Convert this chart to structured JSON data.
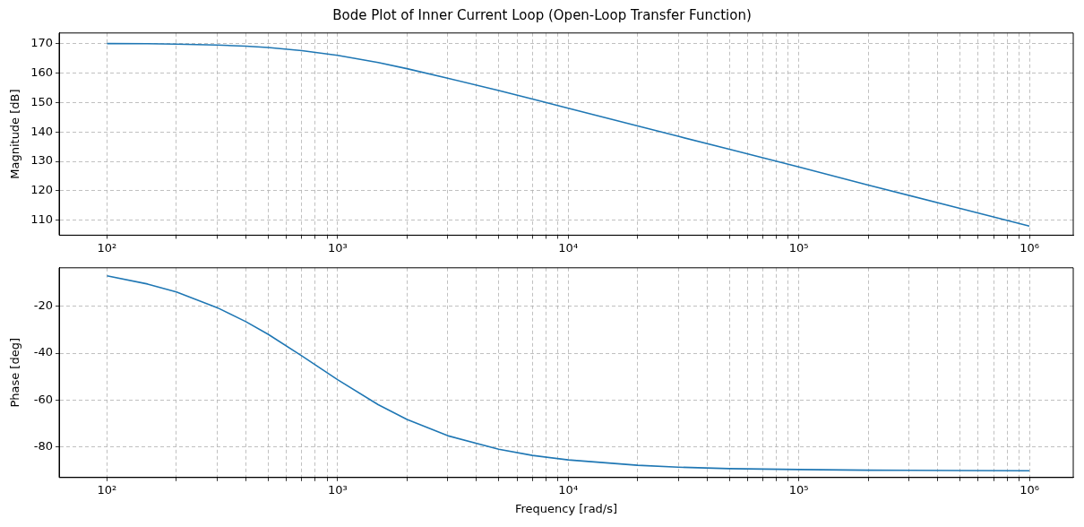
{
  "chart_data": [
    {
      "type": "line",
      "title": "Bode Plot of Inner Current Loop (Open-Loop Transfer Function)",
      "ylabel": "Magnitude [dB]",
      "x": [
        100,
        150,
        200,
        300,
        400,
        500,
        700,
        1000,
        1500,
        2000,
        3000,
        5000,
        7000,
        10000,
        20000,
        30000,
        50000,
        100000,
        200000,
        500000,
        1000000
      ],
      "series": [
        {
          "color": "#1f77b4",
          "values": [
            169.9,
            169.85,
            169.74,
            169.43,
            169.03,
            168.57,
            167.53,
            165.9,
            163.5,
            161.4,
            158.2,
            154.0,
            151.1,
            148.0,
            142.0,
            138.5,
            134.1,
            128.1,
            122.0,
            114.1,
            108.1
          ]
        }
      ],
      "xlim": [
        62,
        1550000
      ],
      "ylim": [
        105,
        173.5
      ],
      "yticks": [
        110,
        120,
        130,
        140,
        150,
        160,
        170
      ],
      "log": "x",
      "grid": true,
      "marker": "none",
      "line_style": "solid",
      "xticks": [
        {
          "value": 100,
          "label": "10²"
        },
        {
          "value": 200,
          "label": null
        },
        {
          "value": 300,
          "label": null
        },
        {
          "value": 400,
          "label": null
        },
        {
          "value": 500,
          "label": null
        },
        {
          "value": 600,
          "label": null
        },
        {
          "value": 700,
          "label": null
        },
        {
          "value": 800,
          "label": null
        },
        {
          "value": 900,
          "label": null
        },
        {
          "value": 1000,
          "label": "10³"
        },
        {
          "value": 2000,
          "label": null
        },
        {
          "value": 3000,
          "label": null
        },
        {
          "value": 4000,
          "label": null
        },
        {
          "value": 5000,
          "label": null
        },
        {
          "value": 6000,
          "label": null
        },
        {
          "value": 7000,
          "label": null
        },
        {
          "value": 8000,
          "label": null
        },
        {
          "value": 9000,
          "label": null
        },
        {
          "value": 10000,
          "label": "10⁴"
        },
        {
          "value": 20000,
          "label": null
        },
        {
          "value": 30000,
          "label": null
        },
        {
          "value": 40000,
          "label": null
        },
        {
          "value": 50000,
          "label": null
        },
        {
          "value": 60000,
          "label": null
        },
        {
          "value": 70000,
          "label": null
        },
        {
          "value": 80000,
          "label": null
        },
        {
          "value": 90000,
          "label": null
        },
        {
          "value": 100000,
          "label": "10⁵"
        },
        {
          "value": 200000,
          "label": null
        },
        {
          "value": 300000,
          "label": null
        },
        {
          "value": 400000,
          "label": null
        },
        {
          "value": 500000,
          "label": null
        },
        {
          "value": 600000,
          "label": null
        },
        {
          "value": 700000,
          "label": null
        },
        {
          "value": 800000,
          "label": null
        },
        {
          "value": 900000,
          "label": null
        },
        {
          "value": 1000000,
          "label": "10⁶"
        }
      ]
    },
    {
      "type": "line",
      "xlabel": "Frequency [rad/s]",
      "ylabel": "Phase [deg]",
      "x": [
        100,
        150,
        200,
        300,
        400,
        500,
        700,
        1000,
        1500,
        2000,
        3000,
        5000,
        7000,
        10000,
        20000,
        30000,
        50000,
        100000,
        200000,
        500000,
        1000000
      ],
      "series": [
        {
          "color": "#1f77b4",
          "values": [
            -7.1,
            -10.6,
            -14.0,
            -20.6,
            -26.6,
            -32.0,
            -41.2,
            -51.3,
            -61.9,
            -68.2,
            -75.1,
            -80.9,
            -83.5,
            -85.4,
            -87.7,
            -88.5,
            -89.1,
            -89.5,
            -89.8,
            -89.9,
            -90.0
          ]
        }
      ],
      "xlim": [
        62,
        1550000
      ],
      "ylim": [
        -92.9,
        -3.7
      ],
      "yticks": [
        -80,
        -60,
        -40,
        -20
      ],
      "log": "x",
      "grid": true,
      "marker": "none",
      "line_style": "solid",
      "xticks": [
        {
          "value": 100,
          "label": "10²"
        },
        {
          "value": 200,
          "label": null
        },
        {
          "value": 300,
          "label": null
        },
        {
          "value": 400,
          "label": null
        },
        {
          "value": 500,
          "label": null
        },
        {
          "value": 600,
          "label": null
        },
        {
          "value": 700,
          "label": null
        },
        {
          "value": 800,
          "label": null
        },
        {
          "value": 900,
          "label": null
        },
        {
          "value": 1000,
          "label": "10³"
        },
        {
          "value": 2000,
          "label": null
        },
        {
          "value": 3000,
          "label": null
        },
        {
          "value": 4000,
          "label": null
        },
        {
          "value": 5000,
          "label": null
        },
        {
          "value": 6000,
          "label": null
        },
        {
          "value": 7000,
          "label": null
        },
        {
          "value": 8000,
          "label": null
        },
        {
          "value": 9000,
          "label": null
        },
        {
          "value": 10000,
          "label": "10⁴"
        },
        {
          "value": 20000,
          "label": null
        },
        {
          "value": 30000,
          "label": null
        },
        {
          "value": 40000,
          "label": null
        },
        {
          "value": 50000,
          "label": null
        },
        {
          "value": 60000,
          "label": null
        },
        {
          "value": 70000,
          "label": null
        },
        {
          "value": 80000,
          "label": null
        },
        {
          "value": 90000,
          "label": null
        },
        {
          "value": 100000,
          "label": "10⁵"
        },
        {
          "value": 200000,
          "label": null
        },
        {
          "value": 300000,
          "label": null
        },
        {
          "value": 400000,
          "label": null
        },
        {
          "value": 500000,
          "label": null
        },
        {
          "value": 600000,
          "label": null
        },
        {
          "value": 700000,
          "label": null
        },
        {
          "value": 800000,
          "label": null
        },
        {
          "value": 900000,
          "label": null
        },
        {
          "value": 1000000,
          "label": "10⁶"
        }
      ]
    }
  ]
}
